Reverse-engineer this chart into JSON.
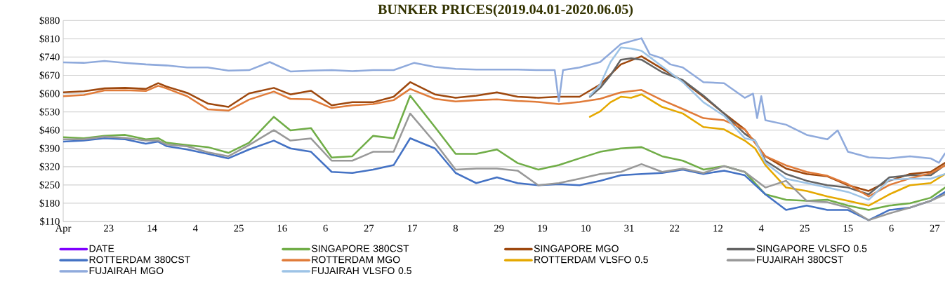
{
  "chart_data": {
    "type": "line",
    "title": "BUNKER PRICES(2019.04.01-2020.06.05)",
    "x": [
      "2019-04-01",
      "2019-04-11",
      "2019-04-21",
      "2019-05-01",
      "2019-05-11",
      "2019-05-17",
      "2019-05-21",
      "2019-05-31",
      "2019-06-10",
      "2019-06-20",
      "2019-06-30",
      "2019-07-12",
      "2019-07-20",
      "2019-07-30",
      "2019-08-09",
      "2019-08-19",
      "2019-08-29",
      "2019-09-08",
      "2019-09-16",
      "2019-09-28",
      "2019-10-08",
      "2019-10-18",
      "2019-10-28",
      "2019-11-07",
      "2019-11-17",
      "2019-11-27",
      "2019-12-07",
      "2019-12-17",
      "2019-12-27",
      "2020-01-06",
      "2020-01-16",
      "2020-01-26",
      "2020-02-05",
      "2020-02-15",
      "2020-02-25",
      "2020-03-06",
      "2020-03-16",
      "2020-03-26",
      "2020-04-05",
      "2020-04-15",
      "2020-04-25",
      "2020-05-05",
      "2020-05-15",
      "2020-05-25",
      "2020-06-01"
    ],
    "xlim": [
      "2019-04-01",
      "2020-06-01"
    ],
    "xticks": [
      {
        "value": "2019-04-01",
        "label": "Apr"
      },
      {
        "value": "2019-04-23",
        "label": "23"
      },
      {
        "value": "2019-05-14",
        "label": "14"
      },
      {
        "value": "2019-06-04",
        "label": "4"
      },
      {
        "value": "2019-06-25",
        "label": "25"
      },
      {
        "value": "2019-07-16",
        "label": "16"
      },
      {
        "value": "2019-08-06",
        "label": "6"
      },
      {
        "value": "2019-08-27",
        "label": "27"
      },
      {
        "value": "2019-09-17",
        "label": "17"
      },
      {
        "value": "2019-10-08",
        "label": "8"
      },
      {
        "value": "2019-10-29",
        "label": "29"
      },
      {
        "value": "2019-11-19",
        "label": "19"
      },
      {
        "value": "2019-12-10",
        "label": "10"
      },
      {
        "value": "2019-12-31",
        "label": "31"
      },
      {
        "value": "2020-01-22",
        "label": "22"
      },
      {
        "value": "2020-02-12",
        "label": "12"
      },
      {
        "value": "2020-03-04",
        "label": "4"
      },
      {
        "value": "2020-03-25",
        "label": "25"
      },
      {
        "value": "2020-04-15",
        "label": "15"
      },
      {
        "value": "2020-05-06",
        "label": "6"
      },
      {
        "value": "2020-05-27",
        "label": "27"
      }
    ],
    "ylim": [
      110,
      880
    ],
    "yticks": [
      {
        "value": 110,
        "label": "$110"
      },
      {
        "value": 180,
        "label": "$180"
      },
      {
        "value": 250,
        "label": "$250"
      },
      {
        "value": 320,
        "label": "$320"
      },
      {
        "value": 390,
        "label": "$390"
      },
      {
        "value": 460,
        "label": "$460"
      },
      {
        "value": 530,
        "label": "$530"
      },
      {
        "value": 600,
        "label": "$600"
      },
      {
        "value": 670,
        "label": "$670"
      },
      {
        "value": 740,
        "label": "$740"
      },
      {
        "value": 810,
        "label": "$810"
      },
      {
        "value": 880,
        "label": "$880"
      }
    ],
    "grid": "y",
    "legend": "bottom",
    "series": [
      {
        "name": "DATE",
        "color": "#7F00FF",
        "values": [
          null,
          null,
          null,
          null,
          null,
          null,
          null,
          null,
          null,
          null,
          null,
          null,
          null,
          null,
          null,
          null,
          null,
          null,
          null,
          null,
          null,
          null,
          null,
          null,
          null,
          null,
          null,
          null,
          null,
          null,
          null,
          null,
          null,
          null,
          null,
          null,
          null,
          null,
          null,
          null,
          null,
          null,
          null,
          null,
          null
        ]
      },
      {
        "name": "SINGAPORE 380CST",
        "color": "#70AD47",
        "values": [
          433,
          429,
          438,
          442,
          425,
          429,
          412,
          403,
          395,
          373,
          412,
          511,
          459,
          468,
          355,
          360,
          438,
          429,
          592,
          472,
          369,
          369,
          386,
          334,
          309,
          326,
          352,
          377,
          390,
          395,
          360,
          343,
          309,
          322,
          300,
          214,
          193,
          189,
          193,
          171,
          154,
          171,
          180,
          201,
          240
        ]
      },
      {
        "name": "SINGAPORE MGO",
        "color": "#9E480E",
        "values": [
          605,
          609,
          620,
          622,
          618,
          640,
          627,
          603,
          562,
          549,
          601,
          622,
          597,
          611,
          555,
          567,
          567,
          588,
          644,
          597,
          584,
          592,
          605,
          588,
          584,
          588,
          588,
          635,
          712,
          743,
          695,
          648,
          588,
          524,
          463,
          360,
          313,
          292,
          283,
          249,
          227,
          266,
          292,
          300,
          335
        ]
      },
      {
        "name": "SINGAPORE VLSFO 0.5",
        "color": "#636363",
        "x": [
          "2019-12-12",
          "2019-12-17",
          "2019-12-22",
          "2019-12-27",
          "2020-01-01",
          "2020-01-06",
          "2020-01-16",
          "2020-01-26",
          "2020-02-05",
          "2020-02-15",
          "2020-02-25",
          "2020-03-01",
          "2020-03-06",
          "2020-03-16",
          "2020-03-26",
          "2020-04-05",
          "2020-04-15",
          "2020-04-25",
          "2020-05-05",
          "2020-05-15",
          "2020-05-25",
          "2020-06-01"
        ],
        "values": [
          588,
          622,
          670,
          730,
          735,
          730,
          682,
          652,
          592,
          524,
          446,
          420,
          343,
          292,
          266,
          249,
          240,
          214,
          279,
          287,
          287,
          326
        ]
      },
      {
        "name": "ROTTERDAM 380CST",
        "color": "#4472C4",
        "values": [
          416,
          420,
          429,
          425,
          408,
          416,
          399,
          386,
          369,
          352,
          386,
          420,
          390,
          377,
          300,
          296,
          309,
          326,
          429,
          390,
          296,
          257,
          279,
          257,
          249,
          253,
          249,
          266,
          287,
          292,
          296,
          309,
          292,
          305,
          287,
          214,
          154,
          171,
          154,
          154,
          115,
          154,
          163,
          189,
          223
        ]
      },
      {
        "name": "ROTTERDAM MGO",
        "color": "#E07B39",
        "values": [
          590,
          595,
          612,
          613,
          610,
          630,
          620,
          590,
          540,
          535,
          577,
          608,
          580,
          578,
          545,
          555,
          560,
          575,
          618,
          580,
          570,
          575,
          578,
          572,
          568,
          560,
          568,
          580,
          605,
          614,
          575,
          541,
          506,
          498,
          463,
          360,
          325,
          300,
          285,
          253,
          206,
          250,
          275,
          295,
          325
        ]
      },
      {
        "name": "ROTTERDAM VLSFO 0.5",
        "color": "#E5A800",
        "x": [
          "2019-12-12",
          "2019-12-17",
          "2019-12-22",
          "2019-12-27",
          "2020-01-01",
          "2020-01-06",
          "2020-01-16",
          "2020-01-26",
          "2020-02-05",
          "2020-02-15",
          "2020-02-25",
          "2020-03-01",
          "2020-03-06",
          "2020-03-16",
          "2020-03-26",
          "2020-04-05",
          "2020-04-15",
          "2020-04-25",
          "2020-05-05",
          "2020-05-15",
          "2020-05-25",
          "2020-06-01"
        ],
        "values": [
          511,
          532,
          567,
          588,
          584,
          597,
          549,
          524,
          472,
          463,
          420,
          390,
          326,
          240,
          227,
          206,
          189,
          171,
          214,
          249,
          257,
          292
        ]
      },
      {
        "name": "FUJAIRAH  380CST",
        "color": "#999999",
        "values": [
          425,
          425,
          435,
          430,
          420,
          420,
          405,
          398,
          375,
          360,
          403,
          460,
          420,
          428,
          343,
          343,
          377,
          377,
          524,
          412,
          309,
          313,
          313,
          305,
          249,
          257,
          274,
          292,
          300,
          330,
          300,
          313,
          296,
          322,
          300,
          240,
          266,
          189,
          184,
          163,
          115,
          141,
          163,
          189,
          214
        ]
      },
      {
        "name": "FUJAIRAH MGO",
        "color": "#8FAADC",
        "x": [
          "2019-04-01",
          "2019-04-11",
          "2019-04-21",
          "2019-05-01",
          "2019-05-11",
          "2019-05-21",
          "2019-05-31",
          "2019-06-10",
          "2019-06-20",
          "2019-06-30",
          "2019-07-10",
          "2019-07-20",
          "2019-07-30",
          "2019-08-09",
          "2019-08-19",
          "2019-08-29",
          "2019-09-08",
          "2019-09-18",
          "2019-09-28",
          "2019-10-08",
          "2019-10-18",
          "2019-10-28",
          "2019-11-07",
          "2019-11-17",
          "2019-11-25",
          "2019-11-27",
          "2019-11-29",
          "2019-12-07",
          "2019-12-17",
          "2019-12-27",
          "2020-01-06",
          "2020-01-10",
          "2020-01-16",
          "2020-01-20",
          "2020-01-26",
          "2020-02-05",
          "2020-02-15",
          "2020-02-25",
          "2020-02-29",
          "2020-03-02",
          "2020-03-04",
          "2020-03-06",
          "2020-03-16",
          "2020-03-26",
          "2020-04-05",
          "2020-04-10",
          "2020-04-15",
          "2020-04-25",
          "2020-05-05",
          "2020-05-15",
          "2020-05-25",
          "2020-05-29",
          "2020-06-01"
        ],
        "values": [
          720,
          718,
          725,
          718,
          712,
          708,
          700,
          700,
          688,
          690,
          721,
          685,
          688,
          690,
          686,
          690,
          690,
          718,
          702,
          695,
          692,
          692,
          692,
          690,
          690,
          570,
          690,
          700,
          721,
          790,
          812,
          751,
          735,
          712,
          700,
          644,
          640,
          584,
          600,
          506,
          590,
          498,
          481,
          442,
          425,
          459,
          377,
          356,
          352,
          360,
          352,
          335,
          371
        ]
      },
      {
        "name": "FUJAIRAH VLSFO 0.5",
        "color": "#9DC3E6",
        "x": [
          "2019-12-12",
          "2019-12-17",
          "2019-12-22",
          "2019-12-27",
          "2020-01-01",
          "2020-01-06",
          "2020-01-16",
          "2020-01-26",
          "2020-02-05",
          "2020-02-15",
          "2020-02-25",
          "2020-03-01",
          "2020-03-06",
          "2020-03-16",
          "2020-03-26",
          "2020-04-05",
          "2020-04-15",
          "2020-04-25",
          "2020-05-05",
          "2020-05-15",
          "2020-05-25",
          "2020-06-01"
        ],
        "values": [
          592,
          635,
          721,
          777,
          773,
          764,
          704,
          644,
          567,
          515,
          429,
          420,
          335,
          274,
          257,
          240,
          223,
          193,
          270,
          274,
          274,
          292
        ]
      }
    ]
  }
}
